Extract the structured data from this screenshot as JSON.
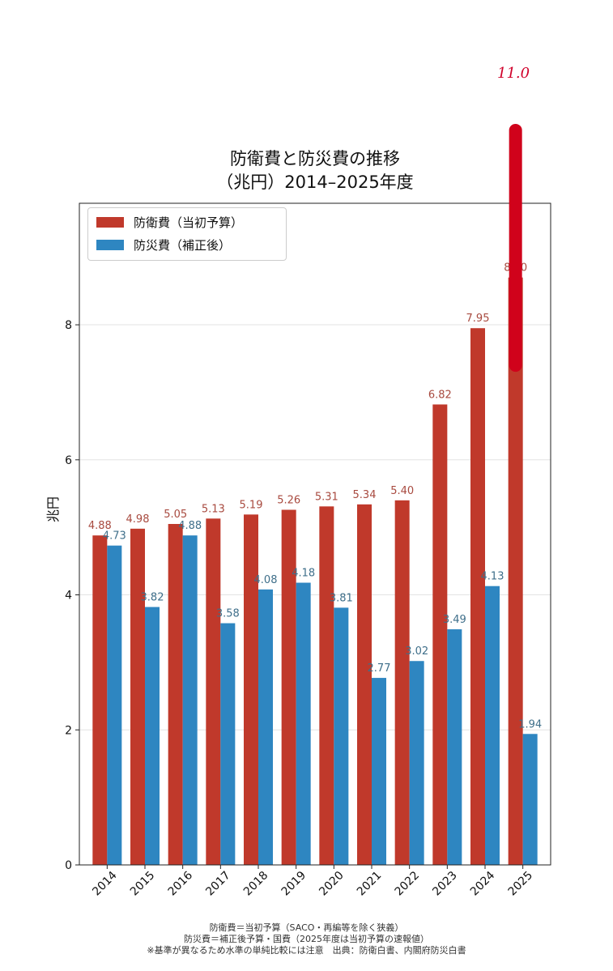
{
  "chart_data": {
    "type": "bar",
    "title_line1": "防衛費と防災費の推移",
    "title_line2": "（兆円）2014–2025年度",
    "ylabel": "兆円",
    "xlabel": "",
    "ylim": [
      0,
      9.8
    ],
    "yticks": [
      0,
      2,
      4,
      6,
      8
    ],
    "grid": "horizontal",
    "legend_position": "top-left",
    "categories": [
      "2014",
      "2015",
      "2016",
      "2017",
      "2018",
      "2019",
      "2020",
      "2021",
      "2022",
      "2023",
      "2024",
      "2025"
    ],
    "series": [
      {
        "name": "防衛費（当初予算）",
        "color": "#c0392b",
        "label_color": "#a84a3f",
        "values": [
          4.88,
          4.98,
          5.05,
          5.13,
          5.19,
          5.26,
          5.31,
          5.34,
          5.4,
          6.82,
          7.95,
          8.7
        ],
        "labels": [
          "4.88",
          "4.98",
          "5.05",
          "5.13",
          "5.19",
          "5.26",
          "5.31",
          "5.34",
          "5.40",
          "6.82",
          "7.95",
          "8.70"
        ]
      },
      {
        "name": "防災費（補正後）",
        "color": "#2e86c1",
        "label_color": "#3f6f8a",
        "values": [
          4.73,
          3.82,
          4.88,
          3.58,
          4.08,
          4.18,
          3.81,
          2.77,
          3.02,
          3.49,
          4.13,
          1.94
        ],
        "labels": [
          "4.73",
          "3.82",
          "4.88",
          "3.58",
          "4.08",
          "4.18",
          "3.81",
          "2.77",
          "3.02",
          "3.49",
          "4.13",
          "1.94"
        ]
      }
    ],
    "annotation": {
      "text": "11.0",
      "category": "2025",
      "from": 7.4,
      "to": 11.0,
      "color": "#d0021b"
    }
  },
  "notes": {
    "line1": "防衛費＝当初予算（SACO・再編等を除く狭義）",
    "line2": "防災費＝補正後予算・国費（2025年度は当初予算の速報値）",
    "line3": "※基準が異なるため水準の単純比較には注意　出典：防衛白書、内閣府防災白書"
  }
}
